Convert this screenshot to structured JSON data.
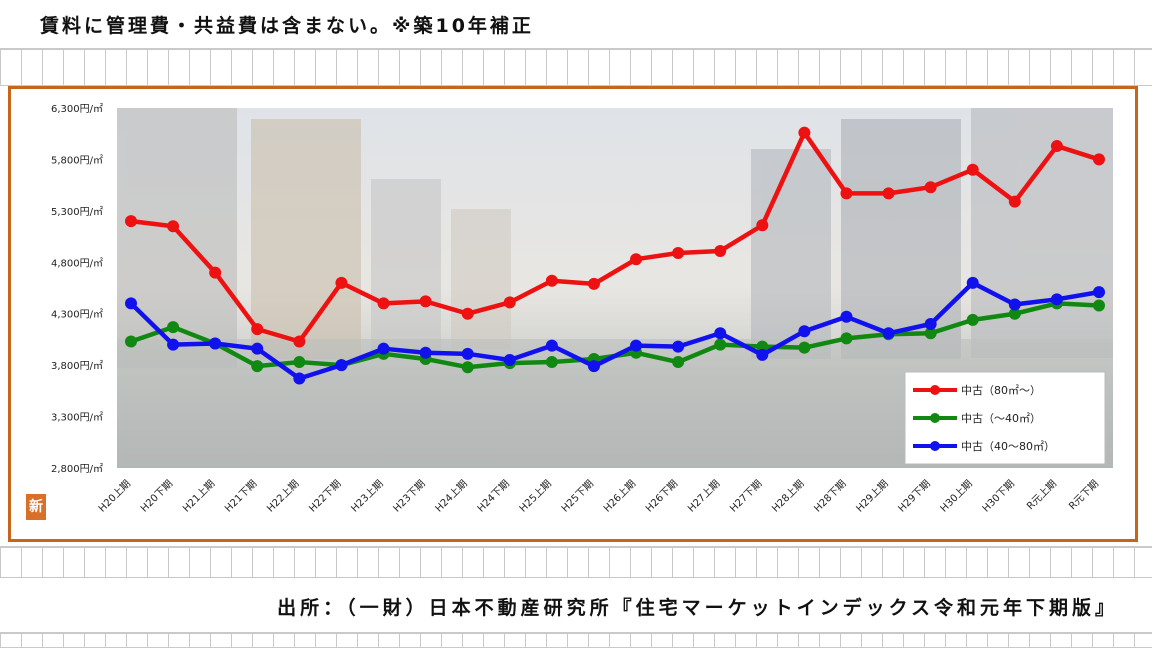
{
  "header": {
    "note": "賃料に管理費・共益費は含まない。※築10年補正"
  },
  "footer": {
    "source": "出所：（一財）日本不動産研究所『住宅マーケットインデックス令和元年下期版』"
  },
  "badge": {
    "text": "新"
  },
  "colors": {
    "frame": "#c7651a",
    "series_red": "#ee1111",
    "series_green": "#118811",
    "series_blue": "#1111ee"
  },
  "chart_data": {
    "type": "line",
    "title": "",
    "xlabel": "",
    "ylabel": "",
    "ylim": [
      2800,
      6300
    ],
    "y_ticks": [
      2800,
      3300,
      3800,
      4300,
      4800,
      5300,
      5800,
      6300
    ],
    "y_tick_labels": [
      "2,800円/㎡",
      "3,300円/㎡",
      "3,800円/㎡",
      "4,300円/㎡",
      "4,800円/㎡",
      "5,300円/㎡",
      "5,800円/㎡",
      "6,300円/㎡"
    ],
    "categories": [
      "H20上期",
      "H20下期",
      "H21上期",
      "H21下期",
      "H22上期",
      "H22下期",
      "H23上期",
      "H23下期",
      "H24上期",
      "H24下期",
      "H25上期",
      "H25下期",
      "H26上期",
      "H26下期",
      "H27上期",
      "H27下期",
      "H28上期",
      "H28下期",
      "H29上期",
      "H29下期",
      "H30上期",
      "H30下期",
      "R元上期",
      "R元下期"
    ],
    "legend_position": "bottom-right",
    "series": [
      {
        "name": "中古（80㎡～）",
        "color": "#ee1111",
        "values": [
          5200,
          5150,
          4700,
          4150,
          4030,
          4600,
          4400,
          4420,
          4300,
          4410,
          4620,
          4590,
          4830,
          4890,
          4910,
          5160,
          6060,
          5470,
          5470,
          5530,
          5700,
          5390,
          5930,
          5800
        ]
      },
      {
        "name": "中古（～40㎡）",
        "color": "#118811",
        "values": [
          4030,
          4170,
          4010,
          3790,
          3830,
          3800,
          3910,
          3860,
          3780,
          3820,
          3830,
          3860,
          3920,
          3830,
          4000,
          3980,
          3970,
          4060,
          4100,
          4110,
          4240,
          4300,
          4400,
          4380
        ]
      },
      {
        "name": "中古（40～80㎡）",
        "color": "#1111ee",
        "values": [
          4400,
          4000,
          4010,
          3960,
          3670,
          3800,
          3960,
          3920,
          3910,
          3850,
          3990,
          3790,
          3990,
          3980,
          4110,
          3900,
          4130,
          4270,
          4110,
          4200,
          4600,
          4390,
          4440,
          4510
        ]
      }
    ]
  }
}
